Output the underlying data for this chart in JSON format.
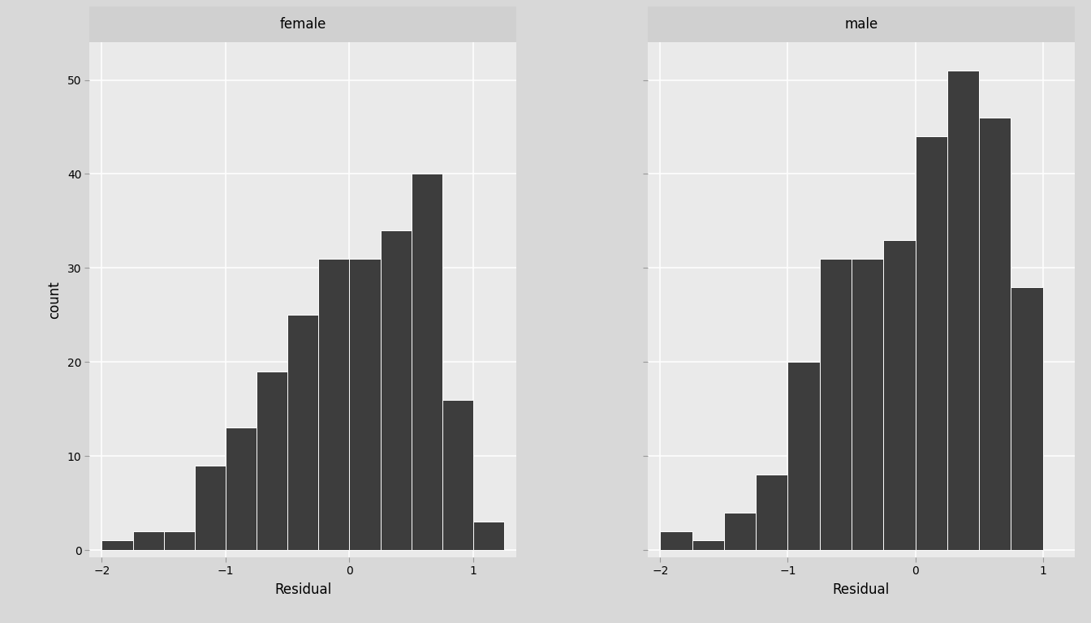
{
  "female_counts": [
    1,
    2,
    2,
    9,
    13,
    19,
    25,
    31,
    31,
    34,
    40,
    16,
    3
  ],
  "male_counts": [
    2,
    1,
    4,
    8,
    20,
    31,
    31,
    33,
    44,
    51,
    46,
    28
  ],
  "female_bin_left": [
    -2.0,
    -1.75,
    -1.5,
    -1.25,
    -1.0,
    -0.75,
    -0.5,
    -0.25,
    0.0,
    0.25,
    0.5,
    0.75,
    1.0
  ],
  "male_bin_left": [
    -2.0,
    -1.75,
    -1.5,
    -1.25,
    -1.0,
    -0.75,
    -0.5,
    -0.25,
    0.0,
    0.25,
    0.5,
    0.75
  ],
  "bin_width": 0.25,
  "bar_color": "#3d3d3d",
  "bar_edge_color": "#ffffff",
  "bar_linewidth": 0.7,
  "panel_labels": [
    "female",
    "male"
  ],
  "xlabel": "Residual",
  "ylabel": "count",
  "female_xlim": [
    -2.1,
    1.35
  ],
  "male_xlim": [
    -2.1,
    1.25
  ],
  "ylim": [
    -0.8,
    54
  ],
  "yticks": [
    0,
    10,
    20,
    30,
    40,
    50
  ],
  "xticks": [
    -2,
    -1,
    0,
    1
  ],
  "label_fontsize": 12,
  "strip_fontsize": 12,
  "tick_fontsize": 10,
  "panel_bg_color": "#eaeaea",
  "outer_bg_color": "#d8d8d8",
  "strip_bg_color": "#d0d0d0",
  "grid_color": "#ffffff",
  "grid_linewidth": 1.1,
  "wspace": 0.12
}
